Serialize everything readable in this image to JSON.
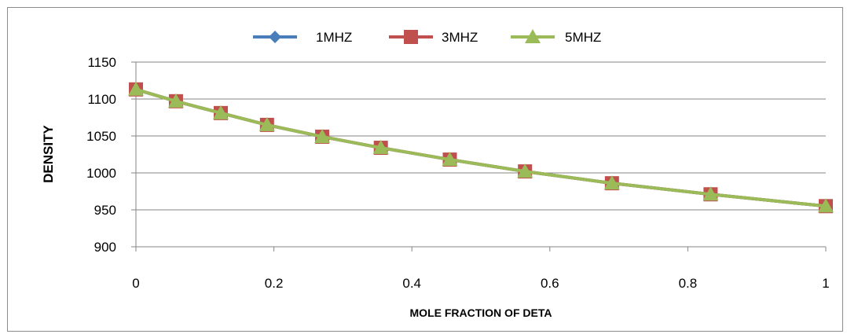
{
  "chart_data": {
    "type": "line",
    "title": "",
    "xlabel": "MOLE FRACTION OF DETA",
    "ylabel": "DENSITY",
    "xlim": [
      0,
      1
    ],
    "ylim": [
      900,
      1150
    ],
    "xticks": [
      0,
      0.2,
      0.4,
      0.6,
      0.8,
      1
    ],
    "xtick_labels": [
      "0",
      "0.2",
      "0.4",
      "0.6",
      "0.8",
      "1"
    ],
    "yticks": [
      900,
      950,
      1000,
      1050,
      1100,
      1150
    ],
    "ytick_labels": [
      "900",
      "950",
      "1000",
      "1050",
      "1100",
      "1150"
    ],
    "grid": "horizontal",
    "legend_position": "top",
    "x": [
      0,
      0.058,
      0.123,
      0.19,
      0.27,
      0.355,
      0.455,
      0.564,
      0.69,
      0.833,
      1
    ],
    "series": [
      {
        "name": "1MHZ",
        "color": "#4a7ebb",
        "marker": "diamond",
        "values": [
          1113,
          1097,
          1081,
          1065,
          1049,
          1034,
          1018,
          1002,
          986,
          971,
          955
        ]
      },
      {
        "name": "3MHZ",
        "color": "#c0504d",
        "marker": "square",
        "values": [
          1113,
          1097,
          1081,
          1065,
          1049,
          1034,
          1018,
          1002,
          986,
          971,
          955
        ]
      },
      {
        "name": "5MHZ",
        "color": "#9bbb59",
        "marker": "triangle",
        "values": [
          1113,
          1097,
          1081,
          1065,
          1049,
          1034,
          1018,
          1002,
          986,
          971,
          955
        ]
      }
    ]
  }
}
